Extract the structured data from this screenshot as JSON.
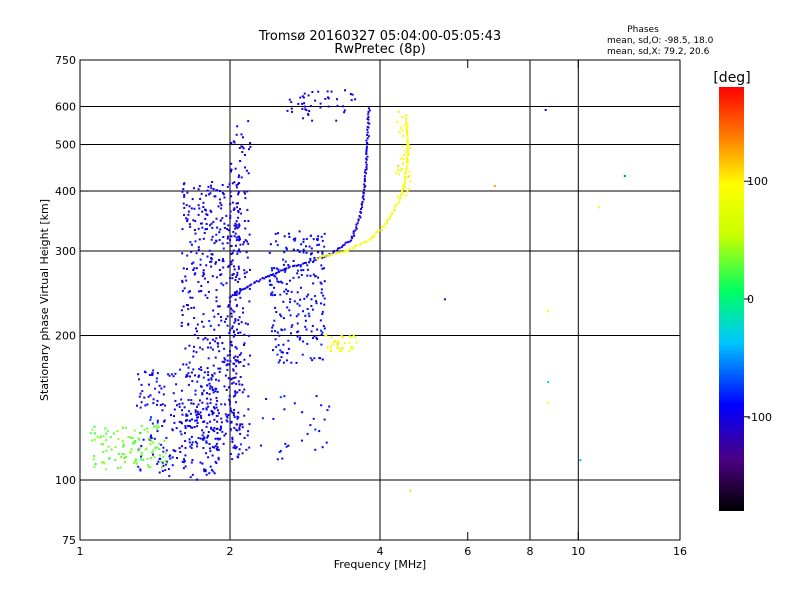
{
  "header": {
    "title_line1": "Tromsø 20160327 05:04:00-05:05:43",
    "title_line2": "RwPretec (8p)"
  },
  "phases": {
    "label": "Phases",
    "line_o": "mean, sd,O: -98.5, 18.0",
    "line_x": "mean, sd,X:  79.2, 20.6"
  },
  "colorbar": {
    "unit": "[deg]",
    "min": -180,
    "max": 180,
    "ticks": [
      {
        "value": 100,
        "label": "100"
      },
      {
        "value": 0,
        "label": "0"
      },
      {
        "value": -100,
        "label": "-100"
      }
    ],
    "colormap": "rainbow"
  },
  "chart_data": {
    "type": "scatter",
    "xlabel": "Frequency [MHz]",
    "ylabel": "Stationary phase Virtual Height [km]",
    "x_scale": "log",
    "y_scale": "log",
    "xlim": [
      1,
      16
    ],
    "ylim": [
      75,
      750
    ],
    "x_ticks": [
      1,
      2,
      4,
      6,
      8,
      10,
      16
    ],
    "y_ticks": [
      75,
      100,
      200,
      300,
      400,
      500,
      600,
      750
    ],
    "x_grid": [
      2,
      4,
      8,
      10
    ],
    "y_grid": [
      100,
      200,
      300,
      400,
      500,
      600
    ],
    "grid": true,
    "series": [
      {
        "clusters": [
          {
            "x": [
              1.6,
              2.1
            ],
            "y": [
              115,
              420
            ],
            "n": 520,
            "phase": -98
          },
          {
            "x": [
              1.3,
              1.9
            ],
            "y": [
              100,
              170
            ],
            "n": 220,
            "phase": -95
          },
          {
            "x": [
              2.0,
              2.2
            ],
            "y": [
              110,
              560
            ],
            "n": 160,
            "phase": -100
          },
          {
            "x": [
              2.4,
              3.1
            ],
            "y": [
              175,
              330
            ],
            "n": 220,
            "phase": -90
          },
          {
            "x": [
              2.6,
              3.6
            ],
            "y": [
              560,
              650
            ],
            "n": 45,
            "phase": -105
          },
          {
            "x": [
              2.3,
              3.2
            ],
            "y": [
              110,
              150
            ],
            "n": 30,
            "phase": -90
          }
        ],
        "trace_points": [
          [
            2.0,
            240
          ],
          [
            2.3,
            262
          ],
          [
            2.6,
            276
          ],
          [
            2.9,
            285
          ],
          [
            3.2,
            296
          ],
          [
            3.5,
            315
          ],
          [
            3.6,
            340
          ],
          [
            3.7,
            380
          ],
          [
            3.75,
            450
          ],
          [
            3.78,
            520
          ],
          [
            3.8,
            600
          ]
        ],
        "phase": -100
      },
      {
        "clusters": [
          {
            "x": [
              1.05,
              1.5
            ],
            "y": [
              105,
              130
            ],
            "n": 110,
            "phase": 30
          },
          {
            "x": [
              3.1,
              3.6
            ],
            "y": [
              185,
              200
            ],
            "n": 35,
            "phase": 90
          },
          {
            "x": [
              4.3,
              4.6
            ],
            "y": [
              380,
              600
            ],
            "n": 35,
            "phase": 95
          }
        ],
        "trace_points": [
          [
            3.0,
            290
          ],
          [
            3.4,
            300
          ],
          [
            3.8,
            315
          ],
          [
            4.1,
            340
          ],
          [
            4.3,
            370
          ],
          [
            4.45,
            400
          ],
          [
            4.5,
            430
          ],
          [
            4.55,
            470
          ],
          [
            4.55,
            520
          ],
          [
            4.5,
            580
          ]
        ],
        "phase": 90
      }
    ],
    "isolated_points": [
      {
        "x": 8.6,
        "y": 590,
        "phase": -105
      },
      {
        "x": 8.7,
        "y": 160,
        "phase": -40
      },
      {
        "x": 8.7,
        "y": 145,
        "phase": 90
      },
      {
        "x": 8.7,
        "y": 225,
        "phase": 100
      },
      {
        "x": 12.4,
        "y": 430,
        "phase": -60
      },
      {
        "x": 10.1,
        "y": 110,
        "phase": -40
      },
      {
        "x": 5.4,
        "y": 238,
        "phase": -110
      },
      {
        "x": 4.6,
        "y": 95,
        "phase": 110
      },
      {
        "x": 6.8,
        "y": 410,
        "phase": 130
      },
      {
        "x": 11.0,
        "y": 370,
        "phase": 100
      }
    ]
  }
}
